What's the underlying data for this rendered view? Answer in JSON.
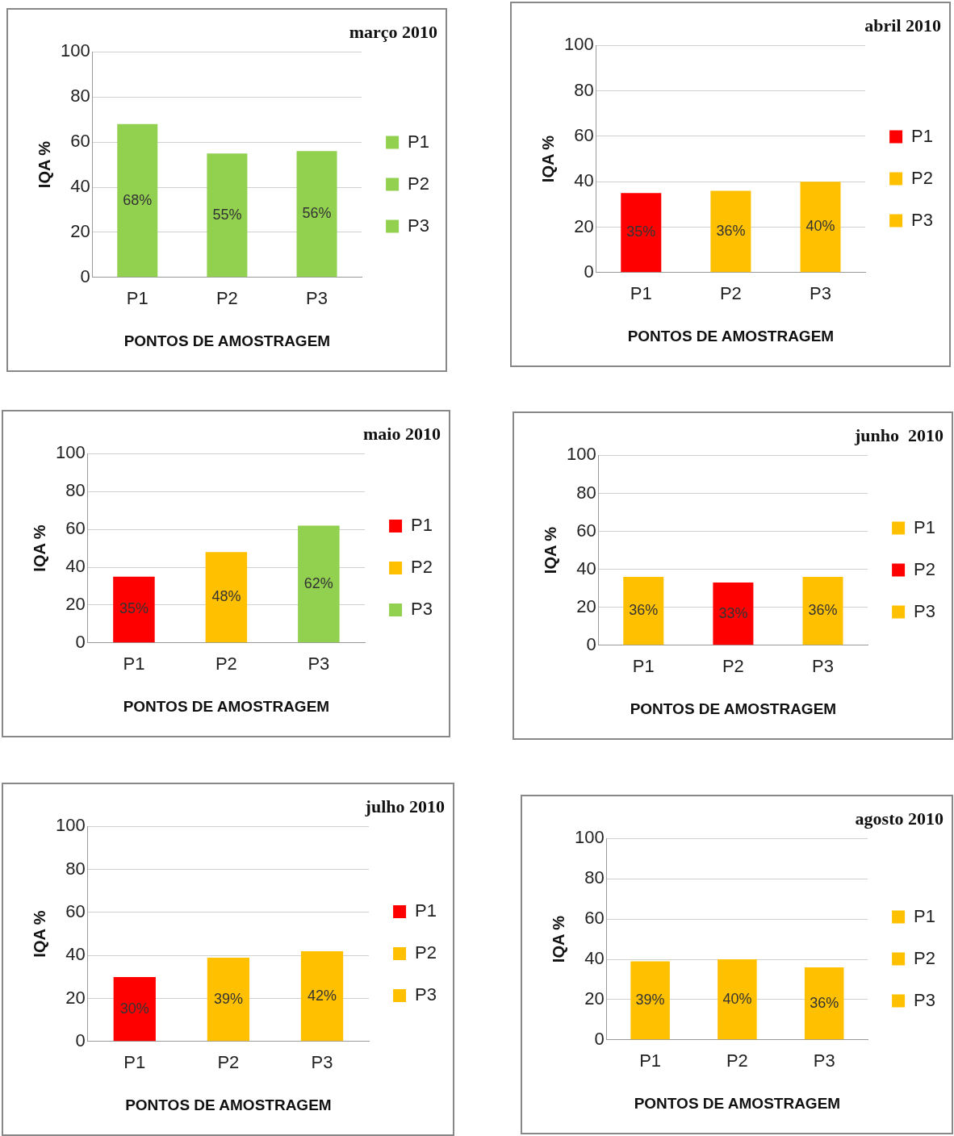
{
  "chart_data": [
    {
      "type": "bar",
      "title": "março 2010",
      "xlabel": "PONTOS DE AMOSTRAGEM",
      "ylabel": "IQA %",
      "categories": [
        "P1",
        "P2",
        "P3"
      ],
      "series": [
        {
          "name": "P1",
          "color": "#92d050",
          "values": [
            68,
            null,
            null
          ],
          "value_labels": [
            "68%",
            null,
            null
          ]
        },
        {
          "name": "P2",
          "color": "#92d050",
          "values": [
            null,
            55,
            null
          ],
          "value_labels": [
            null,
            "55%",
            null
          ]
        },
        {
          "name": "P3",
          "color": "#92d050",
          "values": [
            null,
            null,
            56
          ],
          "value_labels": [
            null,
            null,
            "56%"
          ]
        }
      ],
      "ylim": [
        0,
        100
      ],
      "yticks": [
        0,
        20,
        40,
        60,
        80,
        100
      ],
      "grid": "y",
      "legend": "right"
    },
    {
      "type": "bar",
      "title": "abril 2010",
      "xlabel": "PONTOS DE AMOSTRAGEM",
      "ylabel": "IQA %",
      "categories": [
        "P1",
        "P2",
        "P3"
      ],
      "series": [
        {
          "name": "P1",
          "color": "#ff0000",
          "values": [
            35,
            null,
            null
          ],
          "value_labels": [
            "35%",
            null,
            null
          ]
        },
        {
          "name": "P2",
          "color": "#ffc000",
          "values": [
            null,
            36,
            null
          ],
          "value_labels": [
            null,
            "36%",
            null
          ]
        },
        {
          "name": "P3",
          "color": "#ffc000",
          "values": [
            null,
            null,
            40
          ],
          "value_labels": [
            null,
            null,
            "40%"
          ]
        }
      ],
      "ylim": [
        0,
        100
      ],
      "yticks": [
        0,
        20,
        40,
        60,
        80,
        100
      ],
      "grid": "y",
      "legend": "right"
    },
    {
      "type": "bar",
      "title": "maio 2010",
      "xlabel": "PONTOS DE AMOSTRAGEM",
      "ylabel": "IQA %",
      "categories": [
        "P1",
        "P2",
        "P3"
      ],
      "series": [
        {
          "name": "P1",
          "color": "#ff0000",
          "values": [
            35,
            null,
            null
          ],
          "value_labels": [
            "35%",
            null,
            null
          ]
        },
        {
          "name": "P2",
          "color": "#ffc000",
          "values": [
            null,
            48,
            null
          ],
          "value_labels": [
            null,
            "48%",
            null
          ]
        },
        {
          "name": "P3",
          "color": "#92d050",
          "values": [
            null,
            null,
            62
          ],
          "value_labels": [
            null,
            null,
            "62%"
          ]
        }
      ],
      "ylim": [
        0,
        100
      ],
      "yticks": [
        0,
        20,
        40,
        60,
        80,
        100
      ],
      "grid": "y",
      "legend": "right"
    },
    {
      "type": "bar",
      "title": "junho  2010",
      "xlabel": "PONTOS DE AMOSTRAGEM",
      "ylabel": "IQA %",
      "categories": [
        "P1",
        "P2",
        "P3"
      ],
      "series": [
        {
          "name": "P1",
          "color": "#ffc000",
          "values": [
            36,
            null,
            null
          ],
          "value_labels": [
            "36%",
            null,
            null
          ]
        },
        {
          "name": "P2",
          "color": "#ff0000",
          "values": [
            null,
            33,
            null
          ],
          "value_labels": [
            null,
            "33%",
            null
          ]
        },
        {
          "name": "P3",
          "color": "#ffc000",
          "values": [
            null,
            null,
            36
          ],
          "value_labels": [
            null,
            null,
            "36%"
          ]
        }
      ],
      "ylim": [
        0,
        100
      ],
      "yticks": [
        0,
        20,
        40,
        60,
        80,
        100
      ],
      "grid": "y",
      "legend": "right"
    },
    {
      "type": "bar",
      "title": "julho 2010",
      "xlabel": "PONTOS DE AMOSTRAGEM",
      "ylabel": "IQA %",
      "categories": [
        "P1",
        "P2",
        "P3"
      ],
      "series": [
        {
          "name": "P1",
          "color": "#ff0000",
          "values": [
            30,
            null,
            null
          ],
          "value_labels": [
            "30%",
            null,
            null
          ]
        },
        {
          "name": "P2",
          "color": "#ffc000",
          "values": [
            null,
            39,
            null
          ],
          "value_labels": [
            null,
            "39%",
            null
          ]
        },
        {
          "name": "P3",
          "color": "#ffc000",
          "values": [
            null,
            null,
            42
          ],
          "value_labels": [
            null,
            null,
            "42%"
          ]
        }
      ],
      "ylim": [
        0,
        100
      ],
      "yticks": [
        0,
        20,
        40,
        60,
        80,
        100
      ],
      "grid": "y",
      "legend": "right"
    },
    {
      "type": "bar",
      "title": "agosto 2010",
      "xlabel": "PONTOS DE AMOSTRAGEM",
      "ylabel": "IQA %",
      "categories": [
        "P1",
        "P2",
        "P3"
      ],
      "series": [
        {
          "name": "P1",
          "color": "#ffc000",
          "values": [
            39,
            null,
            null
          ],
          "value_labels": [
            "39%",
            null,
            null
          ]
        },
        {
          "name": "P2",
          "color": "#ffc000",
          "values": [
            null,
            40,
            null
          ],
          "value_labels": [
            null,
            "40%",
            null
          ]
        },
        {
          "name": "P3",
          "color": "#ffc000",
          "values": [
            null,
            null,
            36
          ],
          "value_labels": [
            null,
            null,
            "36%"
          ]
        }
      ],
      "ylim": [
        0,
        100
      ],
      "yticks": [
        0,
        20,
        40,
        60,
        80,
        100
      ],
      "grid": "y",
      "legend": "right"
    }
  ]
}
